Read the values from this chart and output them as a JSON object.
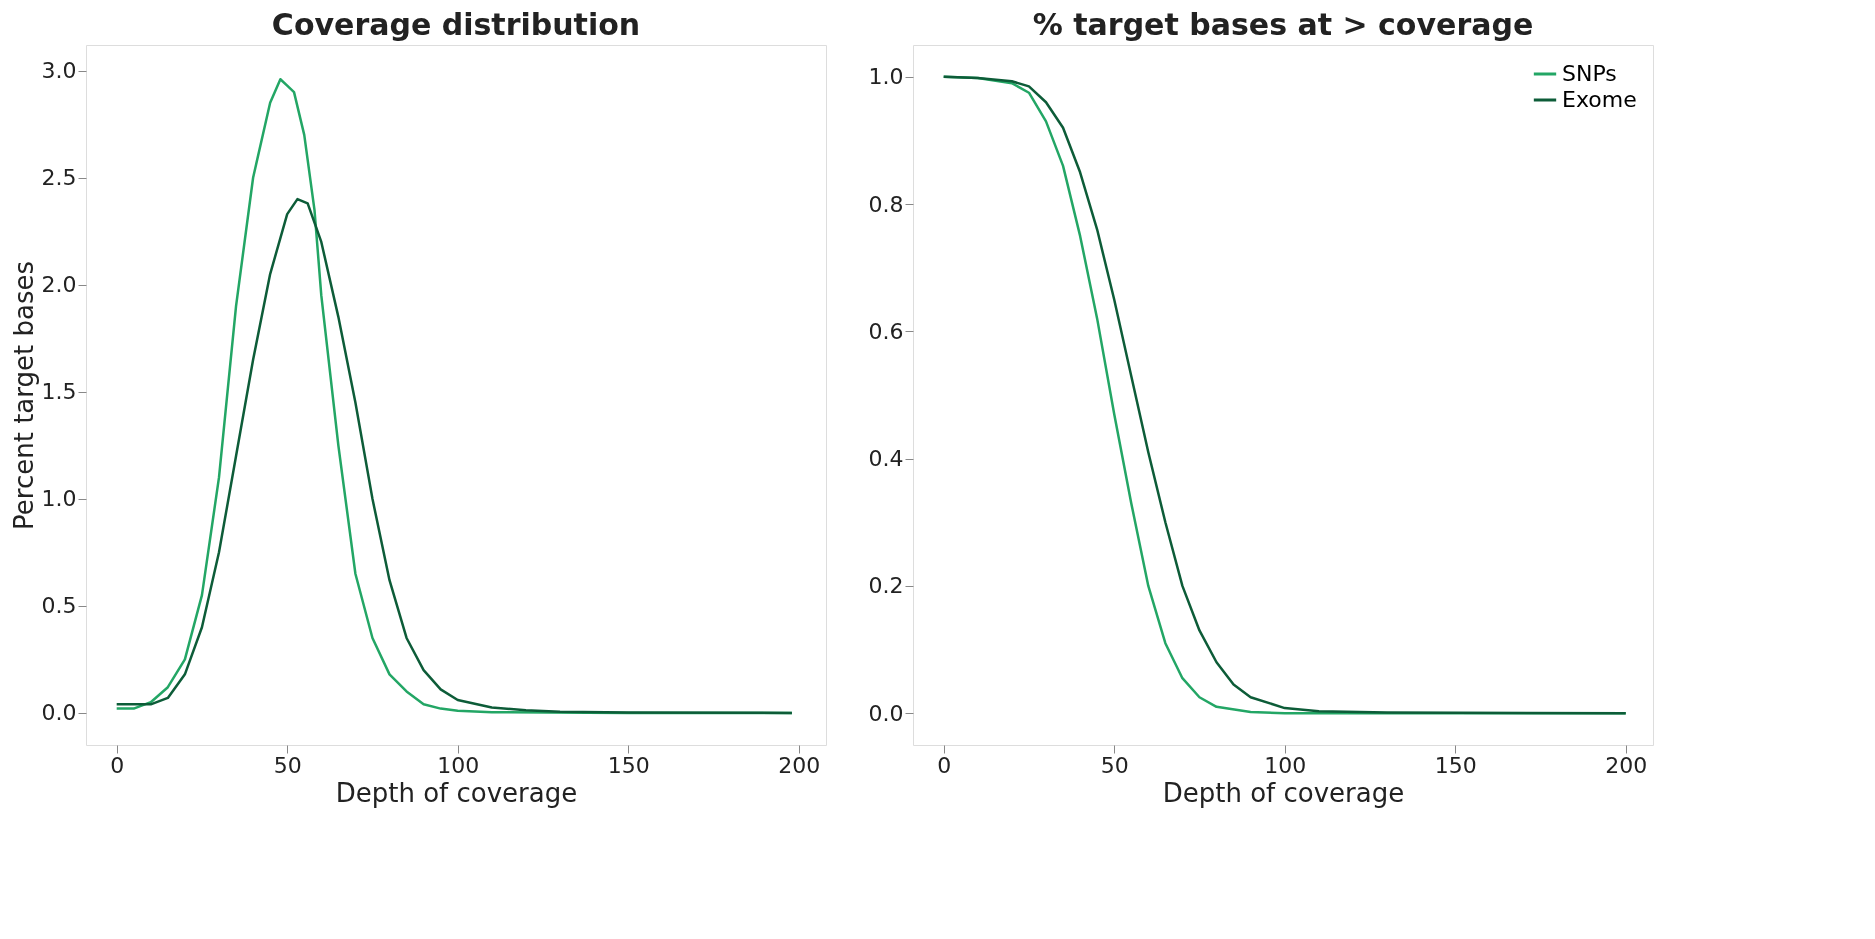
{
  "chart_data": [
    {
      "type": "line",
      "title": "Coverage distribution",
      "xlabel": "Depth of coverage",
      "ylabel": "Percent target bases",
      "xlim": [
        -9,
        208
      ],
      "xticks": [
        0,
        50,
        100,
        150,
        200
      ],
      "ylim": [
        -0.15,
        3.12
      ],
      "yticks": [
        {
          "value": 0,
          "label": "0.0"
        },
        {
          "value": 0.5,
          "label": "0.5"
        },
        {
          "value": 1,
          "label": "1.0"
        },
        {
          "value": 1.5,
          "label": "1.5"
        },
        {
          "value": 2,
          "label": "2.0"
        },
        {
          "value": 2.5,
          "label": "2.5"
        },
        {
          "value": 3,
          "label": "3.0"
        }
      ],
      "grid": false,
      "legend": false,
      "series": [
        {
          "color": "#23a665",
          "x": [
            0,
            5,
            10,
            15,
            20,
            25,
            30,
            35,
            40,
            45,
            48,
            50,
            52,
            55,
            58,
            60,
            65,
            70,
            75,
            80,
            85,
            90,
            95,
            100,
            110,
            150,
            198
          ],
          "values": [
            0.02,
            0.02,
            0.05,
            0.12,
            0.25,
            0.55,
            1.1,
            1.9,
            2.5,
            2.85,
            2.96,
            2.93,
            2.9,
            2.7,
            2.35,
            1.95,
            1.25,
            0.65,
            0.35,
            0.18,
            0.1,
            0.04,
            0.02,
            0.01,
            0.003,
            0,
            0
          ]
        },
        {
          "color": "#0d5c38",
          "x": [
            0,
            5,
            10,
            15,
            20,
            25,
            30,
            35,
            40,
            45,
            50,
            53,
            56,
            60,
            65,
            70,
            75,
            80,
            85,
            90,
            95,
            100,
            110,
            120,
            130,
            150,
            198
          ],
          "values": [
            0.04,
            0.04,
            0.04,
            0.07,
            0.18,
            0.4,
            0.75,
            1.2,
            1.65,
            2.05,
            2.33,
            2.4,
            2.38,
            2.2,
            1.85,
            1.45,
            1.0,
            0.62,
            0.35,
            0.2,
            0.11,
            0.06,
            0.025,
            0.012,
            0.005,
            0.002,
            0
          ]
        }
      ]
    },
    {
      "type": "line",
      "title": "% target bases at > coverage",
      "xlabel": "Depth of coverage",
      "xlim": [
        -9,
        208
      ],
      "xticks": [
        0,
        50,
        100,
        150,
        200
      ],
      "ylim": [
        -0.05,
        1.05
      ],
      "yticks": [
        {
          "value": 0,
          "label": "0.0"
        },
        {
          "value": 0.2,
          "label": "0.2"
        },
        {
          "value": 0.4,
          "label": "0.4"
        },
        {
          "value": 0.6,
          "label": "0.6"
        },
        {
          "value": 0.8,
          "label": "0.8"
        },
        {
          "value": 1,
          "label": "1.0"
        }
      ],
      "grid": false,
      "legend": "top right",
      "series": [
        {
          "name": "SNPs",
          "color": "#23a665",
          "x": [
            0,
            10,
            20,
            25,
            30,
            35,
            40,
            45,
            50,
            55,
            60,
            65,
            70,
            75,
            80,
            90,
            100,
            200
          ],
          "values": [
            1.0,
            0.998,
            0.99,
            0.975,
            0.93,
            0.86,
            0.75,
            0.62,
            0.47,
            0.33,
            0.2,
            0.11,
            0.055,
            0.025,
            0.01,
            0.002,
            0,
            0
          ]
        },
        {
          "name": "Exome",
          "color": "#0d5c38",
          "x": [
            0,
            10,
            20,
            25,
            30,
            35,
            40,
            45,
            50,
            55,
            60,
            65,
            70,
            75,
            80,
            85,
            90,
            100,
            110,
            130,
            200
          ],
          "values": [
            1.0,
            0.998,
            0.993,
            0.985,
            0.96,
            0.92,
            0.85,
            0.76,
            0.65,
            0.53,
            0.41,
            0.3,
            0.2,
            0.13,
            0.08,
            0.045,
            0.025,
            0.008,
            0.003,
            0.001,
            0
          ]
        }
      ]
    }
  ]
}
